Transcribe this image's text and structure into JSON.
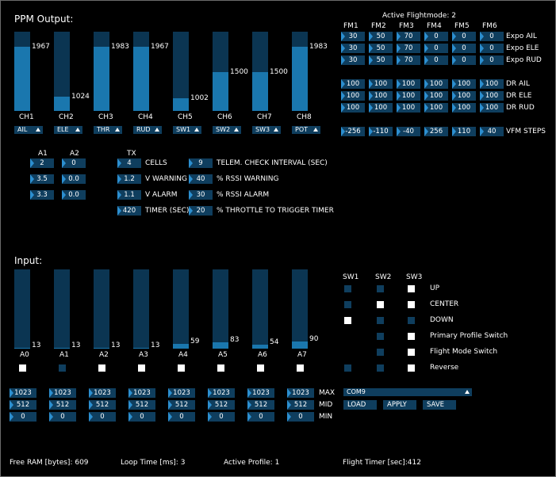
{
  "ppm": {
    "title": "PPM Output:",
    "channels": [
      {
        "label": "CH1",
        "value": "1967",
        "level": 0.81,
        "assign": "AIL"
      },
      {
        "label": "CH2",
        "value": "1024",
        "level": 0.18,
        "assign": "ELE"
      },
      {
        "label": "CH3",
        "value": "1983",
        "level": 0.81,
        "assign": "THR"
      },
      {
        "label": "CH4",
        "value": "1967",
        "level": 0.81,
        "assign": "RUD"
      },
      {
        "label": "CH5",
        "value": "1002",
        "level": 0.16,
        "assign": "SW1"
      },
      {
        "label": "CH6",
        "value": "1500",
        "level": 0.49,
        "assign": "SW2"
      },
      {
        "label": "CH7",
        "value": "1500",
        "level": 0.49,
        "assign": "SW3"
      },
      {
        "label": "CH8",
        "value": "1983",
        "level": 0.81,
        "assign": "POT"
      }
    ]
  },
  "flightmodes": {
    "title": "Active Flightmode: 2",
    "headers": [
      "FM1",
      "FM2",
      "FM3",
      "FM4",
      "FM5",
      "FM6"
    ],
    "rows": [
      {
        "label": "Expo AIL",
        "values": [
          "30",
          "50",
          "70",
          "0",
          "0",
          "0"
        ]
      },
      {
        "label": "Expo ELE",
        "values": [
          "30",
          "50",
          "70",
          "0",
          "0",
          "0"
        ]
      },
      {
        "label": "Expo RUD",
        "values": [
          "30",
          "50",
          "70",
          "0",
          "0",
          "0"
        ]
      },
      {
        "label": "DR AIL",
        "values": [
          "100",
          "100",
          "100",
          "100",
          "100",
          "100"
        ]
      },
      {
        "label": "DR ELE",
        "values": [
          "100",
          "100",
          "100",
          "100",
          "100",
          "100"
        ]
      },
      {
        "label": "DR RUD",
        "values": [
          "100",
          "100",
          "100",
          "100",
          "100",
          "100"
        ]
      },
      {
        "label": "VFM STEPS",
        "values": [
          "-256",
          "-110",
          "-40",
          "256",
          "110",
          "40"
        ]
      }
    ]
  },
  "telemetry": {
    "a1_header": "A1",
    "a2_header": "A2",
    "tx_header": "TX",
    "a1": [
      "2",
      "3.5",
      "3.3"
    ],
    "a2": [
      "0",
      "0.0",
      "0.0"
    ],
    "tx_rows": [
      {
        "value": "4",
        "label": "CELLS"
      },
      {
        "value": "1.2",
        "label": "V WARNING"
      },
      {
        "value": "1.1",
        "label": "V ALARM"
      },
      {
        "value": "420",
        "label": "TIMER (SEC)"
      }
    ],
    "right_rows": [
      {
        "value": "9",
        "label": "TELEM. CHECK INTERVAL (SEC)"
      },
      {
        "value": "40",
        "label": "% RSSI WARNING"
      },
      {
        "value": "30",
        "label": "% RSSI ALARM"
      },
      {
        "value": "20",
        "label": "% THROTTLE TO TRIGGER TIMER"
      }
    ]
  },
  "input": {
    "title": "Input:",
    "channels": [
      {
        "label": "A0",
        "value": "13",
        "level": 0.01,
        "checked": true
      },
      {
        "label": "A1",
        "value": "13",
        "level": 0.01,
        "checked": false
      },
      {
        "label": "A2",
        "value": "13",
        "level": 0.01,
        "checked": true
      },
      {
        "label": "A3",
        "value": "13",
        "level": 0.01,
        "checked": true
      },
      {
        "label": "A4",
        "value": "59",
        "level": 0.06,
        "checked": true
      },
      {
        "label": "A5",
        "value": "83",
        "level": 0.08,
        "checked": true
      },
      {
        "label": "A6",
        "value": "54",
        "level": 0.05,
        "checked": true
      },
      {
        "label": "A7",
        "value": "90",
        "level": 0.09,
        "checked": true
      }
    ],
    "max": [
      "1023",
      "1023",
      "1023",
      "1023",
      "1023",
      "1023",
      "1023",
      "1023"
    ],
    "mid": [
      "512",
      "512",
      "512",
      "512",
      "512",
      "512",
      "512",
      "512"
    ],
    "min": [
      "0",
      "0",
      "0",
      "0",
      "0",
      "0",
      "0",
      "0"
    ],
    "max_label": "MAX",
    "mid_label": "MID",
    "min_label": "MIN"
  },
  "switches": {
    "headers": [
      "SW1",
      "SW2",
      "SW3"
    ],
    "rows": [
      {
        "label": "UP",
        "states": [
          false,
          false,
          true
        ]
      },
      {
        "label": "CENTER",
        "states": [
          false,
          true,
          true
        ]
      },
      {
        "label": "DOWN",
        "states": [
          true,
          false,
          false
        ]
      },
      {
        "label": "Primary Profile Switch",
        "states": [
          null,
          false,
          true
        ]
      },
      {
        "label": "Flight Mode Switch",
        "states": [
          null,
          false,
          true
        ]
      },
      {
        "label": "Reverse",
        "states": [
          false,
          false,
          true
        ]
      }
    ]
  },
  "serial": {
    "port": "COM9",
    "load": "LOAD",
    "apply": "APPLY",
    "save": "SAVE"
  },
  "status": {
    "free_ram": "Free RAM [bytes]: 609",
    "loop_time": "Loop Time [ms]: 3",
    "active_profile": "Active Profile: 1",
    "flight_timer": "Flight Timer [sec]:412"
  }
}
